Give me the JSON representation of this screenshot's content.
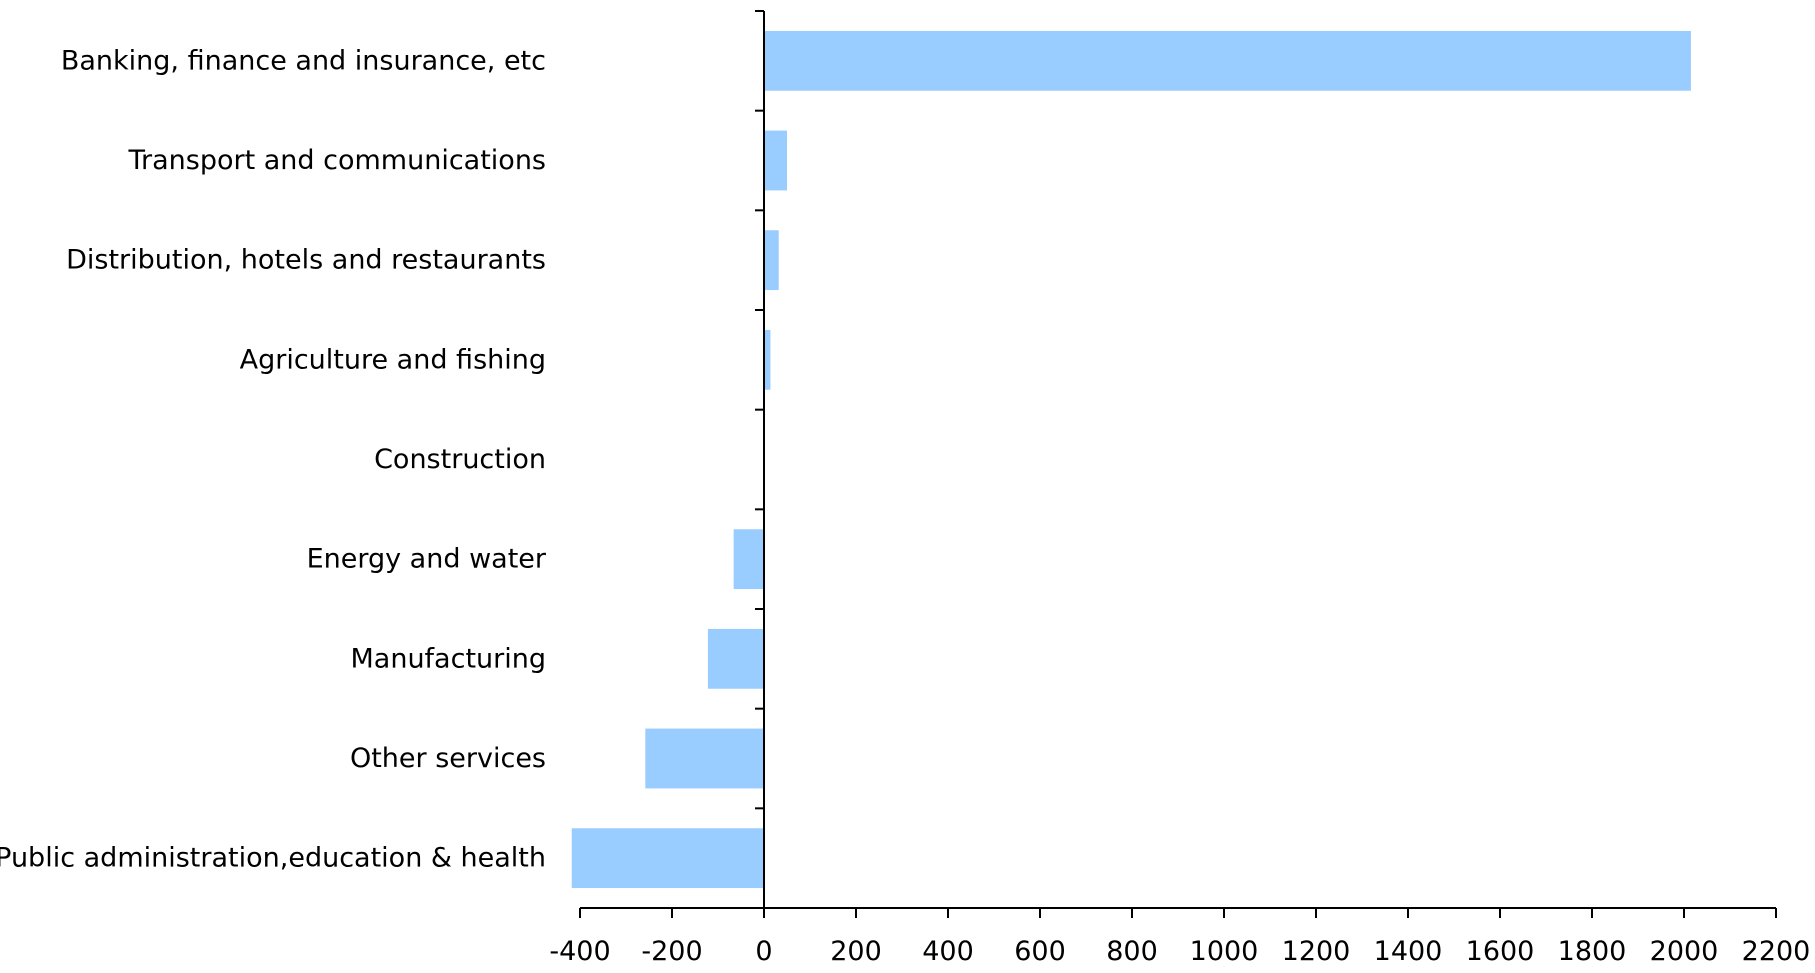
{
  "chart_data": {
    "type": "bar",
    "orientation": "horizontal",
    "title": "",
    "xlabel": "",
    "ylabel": "",
    "categories": [
      "Banking, finance and insurance, etc",
      "Transport and communications",
      "Distribution, hotels and restaurants",
      "Agriculture and fishing",
      "Construction",
      "Energy and water",
      "Manufacturing",
      "Other services",
      "Public administration,education & health"
    ],
    "values": [
      2015,
      50,
      32,
      14,
      0,
      -66,
      -122,
      -258,
      -418
    ],
    "xlim": [
      -400,
      2200
    ],
    "xticks": [
      -400,
      -200,
      0,
      200,
      400,
      600,
      800,
      1000,
      1200,
      1400,
      1600,
      1800,
      2000,
      2200
    ],
    "xtick_labels": [
      "-400",
      "-200",
      "0",
      "200",
      "400",
      "600",
      "800",
      "1000",
      "1200",
      "1400",
      "1600",
      "1800",
      "2000",
      "2200"
    ],
    "grid": false,
    "legend": "none",
    "colors": {
      "bar": "#99ccff",
      "axis": "#000000",
      "text": "#000000"
    }
  }
}
